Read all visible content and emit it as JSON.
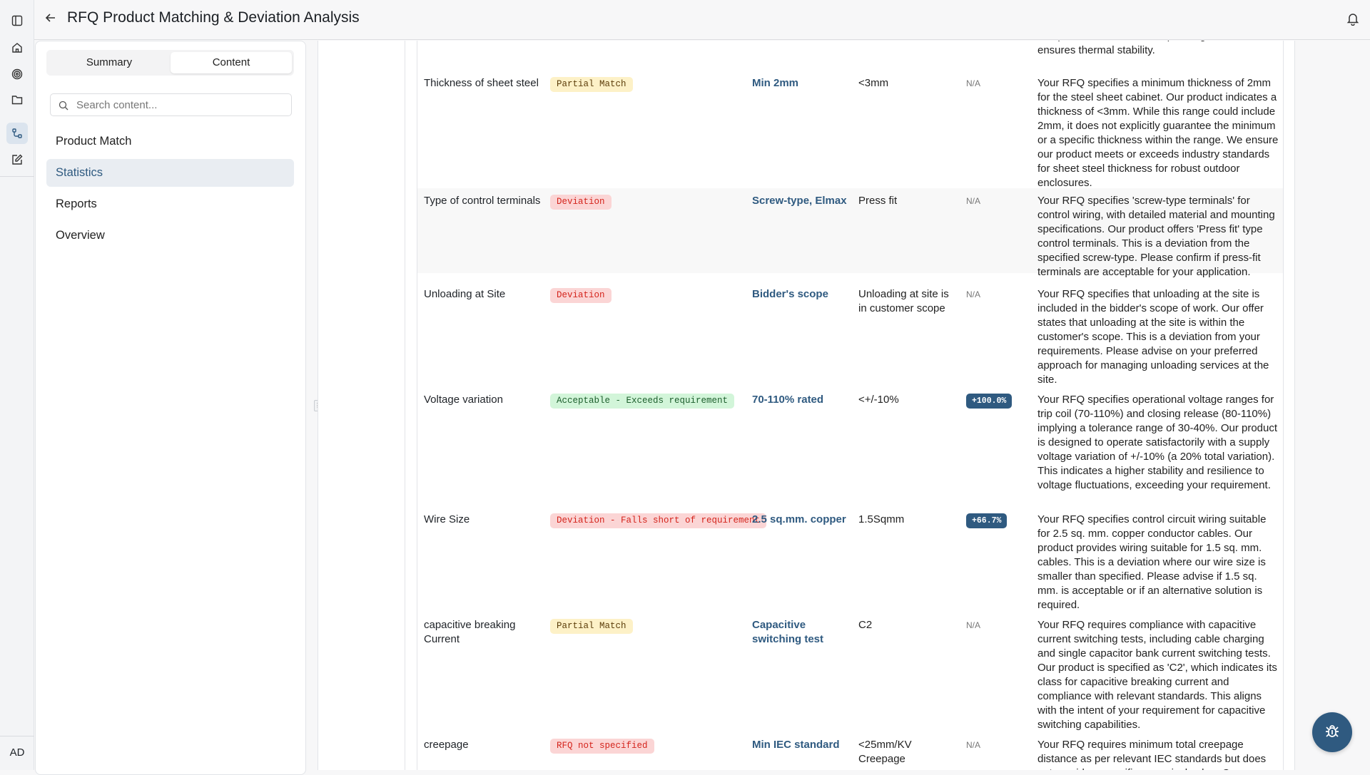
{
  "header": {
    "title": "RFQ Product Matching & Deviation Analysis"
  },
  "rail": {
    "avatar_initials": "AD",
    "active_item": "workflow"
  },
  "panel": {
    "tabs": [
      {
        "label": "Summary",
        "selected": false
      },
      {
        "label": "Content",
        "selected": true
      }
    ],
    "search": {
      "placeholder": "Search content...",
      "value": ""
    },
    "nav": [
      {
        "label": "Product Match"
      },
      {
        "label": "Statistics",
        "selected": true
      },
      {
        "label": "Reports"
      },
      {
        "label": "Overview"
      }
    ]
  },
  "colors": {
    "accent": "#2f5a80",
    "partial_bg": "#fdf1c7",
    "deviation_bg": "#fbd5d5",
    "acceptable_bg": "#d2f5d9"
  },
  "partial_row": {
    "description": "compliance with standard operating conditions and ensures thermal stability."
  },
  "rows": [
    {
      "parameter": "Thickness of sheet steel",
      "status": "Partial Match",
      "status_type": "partial",
      "rfq": "Min 2mm",
      "product": "<3mm",
      "delta": "N/A",
      "description": "Your RFQ specifies a minimum thickness of 2mm for the steel sheet cabinet. Our product indicates a thickness of <3mm. While this range could include 2mm, it does not explicitly guarantee the minimum or a specific thickness within the range. We ensure our product meets or exceeds industry standards for sheet steel thickness for robust outdoor enclosures."
    },
    {
      "parameter": "Type of control terminals",
      "status": "Deviation",
      "status_type": "deviation",
      "rfq": "Screw-type, Elmax",
      "product": "Press fit",
      "delta": "N/A",
      "description": "Your RFQ specifies 'screw-type terminals' for control wiring, with detailed material and mounting specifications. Our product offers 'Press fit' type control terminals. This is a deviation from the specified screw-type. Please confirm if press-fit terminals are acceptable for your application."
    },
    {
      "parameter": "Unloading at Site",
      "status": "Deviation",
      "status_type": "deviation",
      "rfq": "Bidder's scope",
      "product": "Unloading at site is in customer scope",
      "delta": "N/A",
      "description": "Your RFQ specifies that unloading at the site is included in the bidder's scope of work. Our offer states that unloading at the site is within the customer's scope. This is a deviation from your requirements. Please advise on your preferred approach for managing unloading services at the site."
    },
    {
      "parameter": "Voltage variation",
      "status": "Acceptable - Exceeds requirement",
      "status_type": "acceptable",
      "rfq": "70-110% rated",
      "product": "<+/-10%",
      "delta": "+100.0%",
      "description": "Your RFQ specifies operational voltage ranges for trip coil (70-110%) and closing release (80-110%) implying a tolerance range of 30-40%. Our product is designed to operate satisfactorily with a supply voltage variation of +/-10% (a 20% total variation). This indicates a higher stability and resilience to voltage fluctuations, exceeding your requirement."
    },
    {
      "parameter": "Wire Size",
      "status": "Deviation - Falls short of requirement",
      "status_type": "deviation",
      "rfq": "2.5 sq.mm. copper",
      "product": "1.5Sqmm",
      "delta": "+66.7%",
      "description": "Your RFQ specifies control circuit wiring suitable for 2.5 sq. mm. copper conductor cables. Our product provides wiring suitable for 1.5 sq. mm. cables. This is a deviation where our wire size is smaller than specified. Please advise if 1.5 sq. mm. is acceptable or if an alternative solution is required."
    },
    {
      "parameter": "capacitive breaking Current",
      "status": "Partial Match",
      "status_type": "partial",
      "rfq": "Capacitive switching test",
      "product": "C2",
      "delta": "N/A",
      "description": "Your RFQ requires compliance with capacitive current switching tests, including cable charging and single capacitor bank current switching tests. Our product is specified as 'C2', which indicates its class for capacitive breaking current and compliance with relevant standards. This aligns with the intent of your requirement for capacitive switching capabilities."
    },
    {
      "parameter": "creepage",
      "status": "RFQ not specified",
      "status_type": "deviation",
      "rfq": "Min IEC standard",
      "product": "<25mm/KV Creepage",
      "delta": "N/A",
      "description": "Your RFQ requires minimum total creepage distance as per relevant IEC standards but does not provide a specific numerical value. Our"
    }
  ]
}
